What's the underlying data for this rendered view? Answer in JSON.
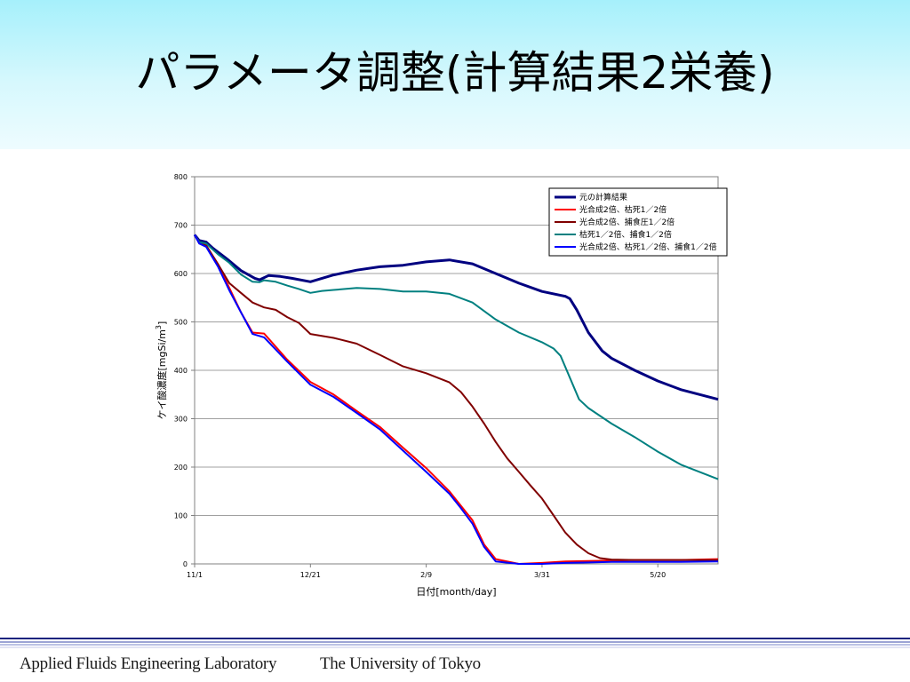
{
  "slide": {
    "title": "パラメータ調整(計算結果2栄養)",
    "footer_left": "Applied Fluids Engineering Laboratory",
    "footer_right": "The University of Tokyo"
  },
  "chart_data": {
    "type": "line",
    "title": "",
    "xlabel": "日付[month/day]",
    "ylabel": "ケイ酸濃度[mgSi/m3]",
    "ylabel_main": "ケイ酸濃度[mgSi/m",
    "ylabel_sup": "3",
    "ylabel_end": "]",
    "xlim": [
      0,
      226
    ],
    "ylim": [
      0,
      800
    ],
    "yticks": [
      0,
      100,
      200,
      300,
      400,
      500,
      600,
      700,
      800
    ],
    "xticks": [
      {
        "label": "11/1",
        "day": 0
      },
      {
        "label": "12/21",
        "day": 50
      },
      {
        "label": "2/9",
        "day": 100
      },
      {
        "label": "3/31",
        "day": 150
      },
      {
        "label": "5/20",
        "day": 200
      }
    ],
    "grid": "horizontal",
    "legend_position": "top-right",
    "series": [
      {
        "name": "元の計算結果",
        "color": "#000080",
        "width": 3,
        "points": [
          [
            0,
            680
          ],
          [
            2,
            668
          ],
          [
            5,
            665
          ],
          [
            8,
            652
          ],
          [
            14,
            630
          ],
          [
            20,
            606
          ],
          [
            26,
            590
          ],
          [
            28,
            587
          ],
          [
            32,
            596
          ],
          [
            37,
            594
          ],
          [
            42,
            590
          ],
          [
            50,
            583
          ],
          [
            60,
            597
          ],
          [
            70,
            607
          ],
          [
            80,
            614
          ],
          [
            90,
            617
          ],
          [
            100,
            624
          ],
          [
            110,
            628
          ],
          [
            120,
            620
          ],
          [
            130,
            600
          ],
          [
            140,
            580
          ],
          [
            150,
            563
          ],
          [
            160,
            553
          ],
          [
            162,
            548
          ],
          [
            165,
            525
          ],
          [
            170,
            478
          ],
          [
            176,
            440
          ],
          [
            180,
            425
          ],
          [
            190,
            400
          ],
          [
            200,
            378
          ],
          [
            210,
            360
          ],
          [
            226,
            340
          ]
        ]
      },
      {
        "name": "光合成2倍、枯死1／2倍",
        "color": "#ff0000",
        "width": 2,
        "points": [
          [
            0,
            680
          ],
          [
            2,
            665
          ],
          [
            5,
            658
          ],
          [
            10,
            620
          ],
          [
            15,
            570
          ],
          [
            20,
            520
          ],
          [
            25,
            478
          ],
          [
            30,
            476
          ],
          [
            40,
            422
          ],
          [
            50,
            376
          ],
          [
            60,
            350
          ],
          [
            70,
            316
          ],
          [
            80,
            283
          ],
          [
            90,
            240
          ],
          [
            100,
            198
          ],
          [
            110,
            150
          ],
          [
            115,
            120
          ],
          [
            120,
            90
          ],
          [
            125,
            40
          ],
          [
            130,
            10
          ],
          [
            140,
            0
          ],
          [
            150,
            2
          ],
          [
            160,
            5
          ],
          [
            170,
            6
          ],
          [
            180,
            7
          ],
          [
            190,
            8
          ],
          [
            200,
            8
          ],
          [
            210,
            8
          ],
          [
            226,
            10
          ]
        ]
      },
      {
        "name": "光合成2倍、捕食圧1／2倍",
        "color": "#800000",
        "width": 2,
        "points": [
          [
            0,
            680
          ],
          [
            2,
            662
          ],
          [
            5,
            658
          ],
          [
            10,
            620
          ],
          [
            15,
            580
          ],
          [
            20,
            560
          ],
          [
            25,
            540
          ],
          [
            30,
            530
          ],
          [
            35,
            525
          ],
          [
            40,
            510
          ],
          [
            45,
            498
          ],
          [
            50,
            475
          ],
          [
            60,
            467
          ],
          [
            70,
            455
          ],
          [
            80,
            432
          ],
          [
            90,
            408
          ],
          [
            100,
            394
          ],
          [
            110,
            375
          ],
          [
            115,
            355
          ],
          [
            120,
            325
          ],
          [
            125,
            290
          ],
          [
            130,
            252
          ],
          [
            135,
            218
          ],
          [
            140,
            190
          ],
          [
            145,
            162
          ],
          [
            150,
            135
          ],
          [
            155,
            100
          ],
          [
            160,
            65
          ],
          [
            165,
            40
          ],
          [
            170,
            22
          ],
          [
            175,
            12
          ],
          [
            180,
            9
          ],
          [
            190,
            8
          ],
          [
            200,
            8
          ],
          [
            210,
            8
          ],
          [
            226,
            8
          ]
        ]
      },
      {
        "name": "枯死1／2倍、捕食1／2倍",
        "color": "#008080",
        "width": 2,
        "points": [
          [
            0,
            680
          ],
          [
            2,
            665
          ],
          [
            5,
            662
          ],
          [
            10,
            640
          ],
          [
            15,
            622
          ],
          [
            20,
            598
          ],
          [
            25,
            583
          ],
          [
            28,
            582
          ],
          [
            30,
            586
          ],
          [
            35,
            583
          ],
          [
            40,
            575
          ],
          [
            45,
            568
          ],
          [
            50,
            560
          ],
          [
            55,
            564
          ],
          [
            60,
            566
          ],
          [
            70,
            570
          ],
          [
            80,
            568
          ],
          [
            90,
            563
          ],
          [
            100,
            563
          ],
          [
            110,
            558
          ],
          [
            120,
            540
          ],
          [
            130,
            505
          ],
          [
            140,
            478
          ],
          [
            150,
            458
          ],
          [
            155,
            445
          ],
          [
            158,
            430
          ],
          [
            162,
            385
          ],
          [
            166,
            340
          ],
          [
            170,
            322
          ],
          [
            180,
            290
          ],
          [
            190,
            262
          ],
          [
            200,
            232
          ],
          [
            210,
            205
          ],
          [
            226,
            175
          ]
        ]
      },
      {
        "name": "光合成2倍、枯死1／2倍、捕食1／2倍",
        "color": "#0000ff",
        "width": 2,
        "points": [
          [
            0,
            680
          ],
          [
            2,
            662
          ],
          [
            5,
            655
          ],
          [
            10,
            615
          ],
          [
            15,
            565
          ],
          [
            20,
            520
          ],
          [
            25,
            475
          ],
          [
            30,
            468
          ],
          [
            40,
            418
          ],
          [
            50,
            370
          ],
          [
            60,
            345
          ],
          [
            70,
            312
          ],
          [
            80,
            278
          ],
          [
            90,
            234
          ],
          [
            100,
            190
          ],
          [
            110,
            145
          ],
          [
            115,
            115
          ],
          [
            120,
            83
          ],
          [
            125,
            35
          ],
          [
            130,
            5
          ],
          [
            140,
            0
          ],
          [
            150,
            0
          ],
          [
            160,
            2
          ],
          [
            170,
            3
          ],
          [
            180,
            4
          ],
          [
            190,
            4
          ],
          [
            200,
            4
          ],
          [
            210,
            4
          ],
          [
            226,
            5
          ]
        ]
      }
    ]
  }
}
